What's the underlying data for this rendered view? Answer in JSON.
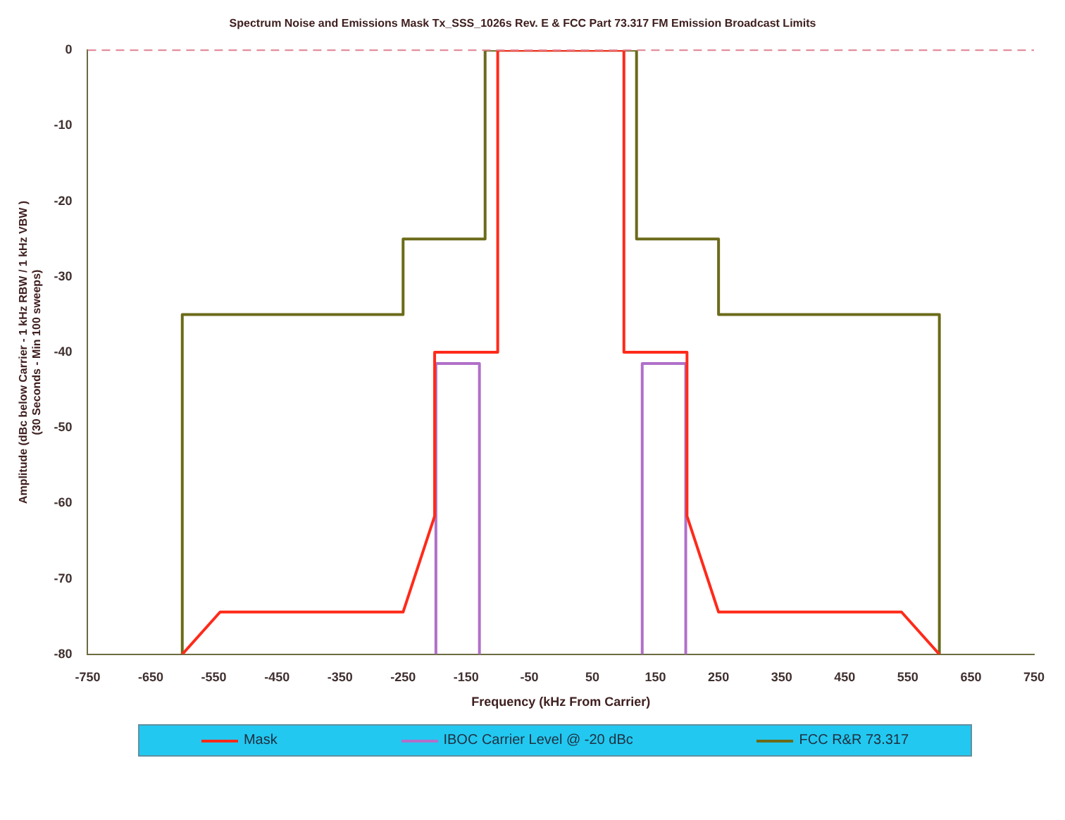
{
  "chart_data": {
    "type": "line",
    "title": "Spectrum Noise and Emissions Mask Tx_SSS_1026s Rev. E & FCC Part 73.317 FM Emission Broadcast Limits",
    "xlabel": "Frequency (kHz From Carrier)",
    "ylabel": "Amplitude (dBc below Carrier - 1 kHz RBW / 1 kHz VBW )\n(30 Seconds - Min 100 sweeps)",
    "xlim": [
      -750,
      750
    ],
    "xticks": [
      -750,
      -650,
      -550,
      -450,
      -350,
      -250,
      -150,
      -50,
      50,
      150,
      250,
      350,
      450,
      550,
      650,
      750
    ],
    "ylim": [
      -80,
      0
    ],
    "yticks": [
      -80,
      -70,
      -60,
      -50,
      -40,
      -30,
      -20,
      -10,
      0
    ],
    "grid": false,
    "legend": "bottom",
    "marker": "none",
    "line_style": "solid",
    "ref_lines": [
      {
        "axis": "y",
        "value": 0,
        "color": "#e08090",
        "line_style": "dashed"
      }
    ],
    "series": [
      {
        "name": "Mask",
        "color": "#ff2a1a",
        "x": [
          -600,
          -540,
          -250,
          -200,
          -200,
          -100,
          -100,
          100,
          100,
          200,
          200,
          250,
          540,
          600
        ],
        "values": [
          -80,
          -74.4,
          -74.4,
          -61.7,
          -40,
          -40,
          0,
          0,
          -40,
          -40,
          -61.7,
          -74.4,
          -74.4,
          -80
        ]
      },
      {
        "name": "IBOC Carrier Level @ -20 dBc",
        "color": "#b070c8",
        "x": [
          -198,
          -198,
          -129,
          -129,
          null,
          129,
          129,
          198,
          198
        ],
        "values": [
          -80,
          -41.5,
          -41.5,
          -80,
          null,
          -80,
          -41.5,
          -41.5,
          -80
        ]
      },
      {
        "name": "FCC R&R 73.317",
        "color": "#6b6b1a",
        "x": [
          -600,
          -600,
          -250,
          -250,
          -120,
          -120,
          120,
          120,
          250,
          250,
          600,
          600
        ],
        "values": [
          -80,
          -35,
          -35,
          -25,
          -25,
          0,
          0,
          -25,
          -25,
          -35,
          -35,
          -80
        ]
      }
    ]
  }
}
